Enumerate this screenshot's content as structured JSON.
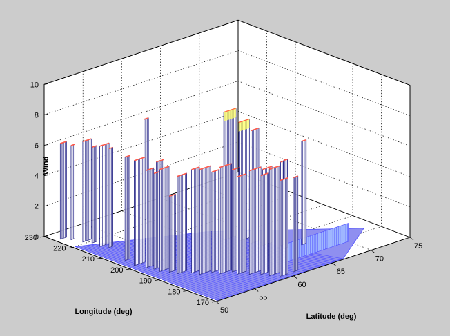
{
  "chart_data": {
    "type": "surface-3d",
    "zlabel": "Wind",
    "xlabel": "Longitude (deg)",
    "ylabel": "Latitude (deg)",
    "xlim": [
      170,
      230
    ],
    "ylim": [
      50,
      75
    ],
    "zlim": [
      0,
      10
    ],
    "x_ticks": [
      "170",
      "180",
      "190",
      "200",
      "210",
      "220",
      "230"
    ],
    "y_ticks": [
      "50",
      "55",
      "60",
      "65",
      "70",
      "75"
    ],
    "z_ticks": [
      "0",
      "2",
      "4",
      "6",
      "8",
      "10"
    ],
    "grid": true,
    "background": "#cccccc",
    "colors": {
      "mesh": "#4d4dff",
      "wall": "#2a2a8a",
      "high": "#ff5a4a",
      "peak": "#ffff66",
      "mid": "#66ccff"
    },
    "series": [
      {
        "lon": 226,
        "lat": 51,
        "lat_width": 0.8,
        "value": 6.3
      },
      {
        "lon": 224,
        "lat": 51.5,
        "lat_width": 0.5,
        "value": 6.2
      },
      {
        "lon": 221,
        "lat": 52.2,
        "lat_width": 1.1,
        "value": 6.6
      },
      {
        "lon": 219,
        "lat": 52.4,
        "lat_width": 0.6,
        "value": 6.3
      },
      {
        "lon": 216,
        "lat": 52.6,
        "lat_width": 1.2,
        "value": 6.6
      },
      {
        "lon": 214,
        "lat": 52.7,
        "lat_width": 0.5,
        "value": 6.5
      },
      {
        "lon": 222,
        "lat": 60.2,
        "lat_width": 0.6,
        "value": 6.6
      },
      {
        "lon": 205,
        "lat": 51.5,
        "lat_width": 0.6,
        "value": 6.8
      },
      {
        "lon": 201,
        "lat": 51.6,
        "lat_width": 1.4,
        "value": 6.9
      },
      {
        "lon": 198,
        "lat": 51.8,
        "lat_width": 1.0,
        "value": 6.4
      },
      {
        "lon": 196,
        "lat": 52.0,
        "lat_width": 0.8,
        "value": 6.3
      },
      {
        "lon": 194,
        "lat": 52.2,
        "lat_width": 1.2,
        "value": 6.7
      },
      {
        "lon": 199,
        "lat": 53.5,
        "lat_width": 1.0,
        "value": 6.6
      },
      {
        "lon": 192,
        "lat": 52.5,
        "lat_width": 0.8,
        "value": 5.0
      },
      {
        "lon": 190,
        "lat": 53.0,
        "lat_width": 1.2,
        "value": 6.4
      },
      {
        "lon": 188,
        "lat": 54.0,
        "lat_width": 1.0,
        "value": 6.8
      },
      {
        "lon": 186,
        "lat": 54.5,
        "lat_width": 1.4,
        "value": 6.9
      },
      {
        "lon": 185,
        "lat": 55.5,
        "lat_width": 1.0,
        "value": 6.6
      },
      {
        "lon": 183,
        "lat": 56.0,
        "lat_width": 1.6,
        "value": 7.0
      },
      {
        "lon": 182,
        "lat": 57.0,
        "lat_width": 1.0,
        "value": 6.7
      },
      {
        "lon": 180,
        "lat": 57.0,
        "lat_width": 1.2,
        "value": 6.4
      },
      {
        "lon": 178,
        "lat": 58.0,
        "lat_width": 1.5,
        "value": 6.8
      },
      {
        "lon": 176,
        "lat": 58.5,
        "lat_width": 1.0,
        "value": 6.5
      },
      {
        "lon": 174,
        "lat": 59.0,
        "lat_width": 1.3,
        "value": 7.0
      },
      {
        "lon": 172,
        "lat": 59.5,
        "lat_width": 1.0,
        "value": 6.3
      },
      {
        "lon": 172,
        "lat": 61.0,
        "lat_width": 0.6,
        "value": 6.2
      },
      {
        "lon": 199,
        "lat": 62.5,
        "lat_width": 1.6,
        "value": 8.4
      },
      {
        "lon": 196,
        "lat": 63.2,
        "lat_width": 1.4,
        "value": 7.8
      },
      {
        "lon": 193,
        "lat": 63.5,
        "lat_width": 1.0,
        "value": 7.4
      },
      {
        "lon": 190,
        "lat": 64.0,
        "lat_width": 1.2,
        "value": 5.0
      },
      {
        "lon": 187,
        "lat": 65.0,
        "lat_width": 0.8,
        "value": 5.5
      },
      {
        "lon": 184,
        "lat": 66.5,
        "lat_width": 0.6,
        "value": 6.8
      },
      {
        "lon": 185,
        "lat": 64.5,
        "lat_width": 0.5,
        "value": 5.8
      }
    ]
  }
}
